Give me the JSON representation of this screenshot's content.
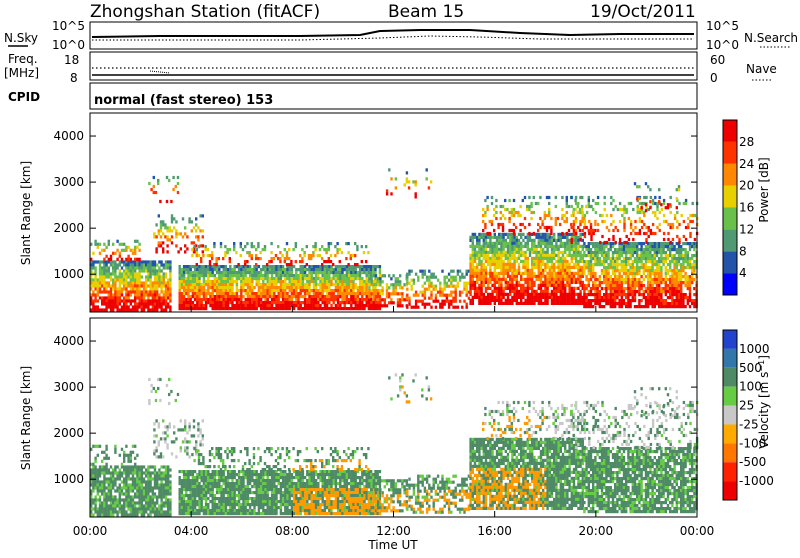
{
  "header": {
    "station": "Zhongshan Station (fitACF)",
    "beam": "Beam 15",
    "date": "19/Oct/2011"
  },
  "nsky_panel": {
    "left_label": "N.Sky",
    "right_label": "N.Search",
    "ticks_left": [
      "10^5",
      "10^0"
    ],
    "ticks_right": [
      "10^5",
      "10^0"
    ]
  },
  "freq_panel": {
    "left_label_1": "Freq.",
    "left_label_2": "[MHz]",
    "right_label": "Nave",
    "ticks_left": [
      "18",
      "8"
    ],
    "ticks_right": [
      "60",
      "0"
    ]
  },
  "cpid": {
    "label": "CPID",
    "mode": "normal (fast stereo) 153"
  },
  "chart_data": [
    {
      "type": "heatmap",
      "quantity": "Power",
      "ylabel": "Slant Range [km]",
      "xlabel": "Time UT",
      "ylim": [
        180,
        4500
      ],
      "yticks": [
        "1000",
        "2000",
        "3000",
        "4000"
      ],
      "xticks": [
        "00:00",
        "04:00",
        "08:00",
        "12:00",
        "16:00",
        "20:00",
        "00:00"
      ],
      "colorbar": {
        "label": "Power [dB]",
        "ticks": [
          "4",
          "8",
          "12",
          "16",
          "20",
          "24",
          "28"
        ],
        "colors": [
          "#0000ff",
          "#2255aa",
          "#4f9a73",
          "#69c04a",
          "#e8d000",
          "#ff8800",
          "#ff3300",
          "#ee0000"
        ]
      }
    },
    {
      "type": "heatmap",
      "quantity": "Velocity",
      "ylabel": "Slant Range [km]",
      "xlabel": "Time UT",
      "ylim": [
        180,
        4500
      ],
      "yticks": [
        "1000",
        "2000",
        "3000",
        "4000"
      ],
      "xticks": [
        "00:00",
        "04:00",
        "08:00",
        "12:00",
        "16:00",
        "20:00",
        "00:00"
      ],
      "colorbar": {
        "label": "Velocity [m s",
        "ticks": [
          "1000",
          "500",
          "100",
          "25",
          "-25",
          "-100",
          "-500",
          "-1000"
        ],
        "colors": [
          "#2244cc",
          "#3377aa",
          "#4f8a66",
          "#66cc44",
          "#c8c8c8",
          "#ffaa00",
          "#ff7700",
          "#ff2200",
          "#ee0000"
        ]
      }
    }
  ],
  "colors": {
    "frame": "#000000",
    "power_blue": "#2255aa",
    "power_green": "#4f9a73",
    "power_yellow": "#e8d000",
    "power_orange": "#ff8800",
    "power_red": "#ee0000",
    "vel_green": "#4f8a66",
    "vel_orange": "#ff8800",
    "vel_grey": "#c8c8c8"
  }
}
